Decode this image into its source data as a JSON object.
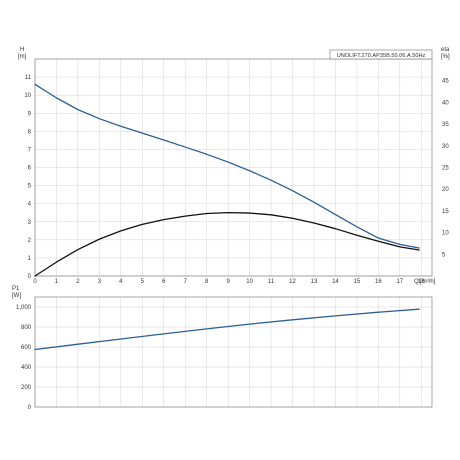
{
  "chart_data": [
    {
      "type": "line",
      "title": "UNOLIFT.270.AP35B.50.06.A.50Hz",
      "xlabel": "Q",
      "xunit": "[m³/h]",
      "ylabel": "H",
      "yunit": "[m]",
      "y2label": "eta",
      "y2unit": "[%]",
      "xlim": [
        0,
        18.5
      ],
      "ylim": [
        0,
        12
      ],
      "y2lim": [
        0,
        50
      ],
      "grid": true,
      "x_ticks": [
        "0",
        "1",
        "2",
        "3",
        "4",
        "5",
        "6",
        "7",
        "8",
        "9",
        "10",
        "11",
        "12",
        "13",
        "14",
        "15",
        "16",
        "17",
        "18"
      ],
      "y_ticks": [
        "0",
        "1",
        "2",
        "3",
        "4",
        "5",
        "6",
        "7",
        "8",
        "9",
        "10",
        "11"
      ],
      "y2_ticks": [
        "5",
        "10",
        "15",
        "20",
        "25",
        "30",
        "35",
        "40",
        "45"
      ],
      "colors": {
        "head": "#2b5f94",
        "efficiency": "#111111",
        "power": "#2b5f94"
      },
      "series": [
        {
          "key": "head",
          "axis": "left",
          "x": [
            0,
            1,
            2,
            3,
            4,
            5,
            6,
            7,
            8,
            9,
            10,
            11,
            12,
            13,
            14,
            15,
            16,
            17,
            17.9
          ],
          "y": [
            10.6,
            9.85,
            9.2,
            8.7,
            8.28,
            7.9,
            7.52,
            7.13,
            6.73,
            6.3,
            5.82,
            5.3,
            4.72,
            4.08,
            3.4,
            2.72,
            2.1,
            1.75,
            1.55
          ]
        },
        {
          "key": "efficiency",
          "axis": "right",
          "x": [
            0,
            1,
            2,
            3,
            4,
            5,
            6,
            7,
            8,
            9,
            10,
            11,
            12,
            13,
            14,
            15,
            16,
            17,
            17.9
          ],
          "y": [
            0,
            3.2,
            6.1,
            8.5,
            10.4,
            11.9,
            13.0,
            13.8,
            14.4,
            14.6,
            14.5,
            14.1,
            13.3,
            12.2,
            10.9,
            9.4,
            8.0,
            6.7,
            6.0
          ]
        }
      ]
    },
    {
      "type": "line",
      "title": "",
      "xlabel": "",
      "ylabel": "P1",
      "yunit": "[W]",
      "xlim": [
        0,
        18.5
      ],
      "ylim": [
        0,
        1100
      ],
      "grid": true,
      "x_ticks": [
        "0",
        "1",
        "2",
        "3",
        "4",
        "5",
        "6",
        "7",
        "8",
        "9",
        "10",
        "11",
        "12",
        "13",
        "14",
        "15",
        "16",
        "17",
        "18"
      ],
      "y_ticks": [
        "0",
        "200",
        "400",
        "600",
        "800",
        "1,000"
      ],
      "series": [
        {
          "key": "power",
          "axis": "left",
          "x": [
            0,
            2,
            4,
            6,
            8,
            10,
            12,
            14,
            16,
            17.9
          ],
          "y": [
            575,
            628,
            680,
            731,
            781,
            829,
            872,
            911,
            948,
            978
          ]
        }
      ]
    }
  ]
}
